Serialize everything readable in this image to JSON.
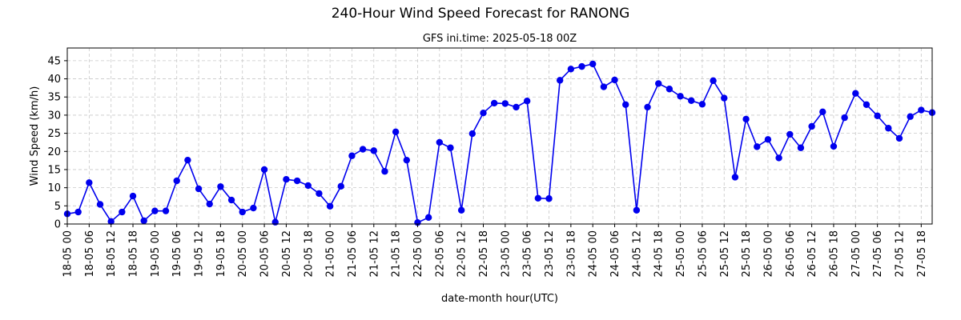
{
  "chart_data": {
    "type": "line",
    "title": "240-Hour Wind Speed Forecast for RANONG",
    "subtitle": "GFS ini.time: 2025-05-18 00Z",
    "xlabel": "date-month hour(UTC)",
    "ylabel": "Wind Speed (km/h)",
    "ylim": [
      0,
      48.5
    ],
    "yticks": [
      0,
      5,
      10,
      15,
      20,
      25,
      30,
      35,
      40,
      45
    ],
    "grid": true,
    "grid_style": "dashed",
    "line_color": "#0000ee",
    "marker": "circle",
    "x_tick_labels": [
      "18-05 00",
      "18-05 06",
      "18-05 12",
      "18-05 18",
      "19-05 00",
      "19-05 06",
      "19-05 12",
      "19-05 18",
      "20-05 00",
      "20-05 06",
      "20-05 12",
      "20-05 18",
      "21-05 00",
      "21-05 06",
      "21-05 12",
      "21-05 18",
      "22-05 00",
      "22-05 06",
      "22-05 12",
      "22-05 18",
      "23-05 00",
      "23-05 06",
      "23-05 12",
      "23-05 18",
      "24-05 00",
      "24-05 06",
      "24-05 12",
      "24-05 18",
      "25-05 00",
      "25-05 06",
      "25-05 12",
      "25-05 18",
      "26-05 00",
      "26-05 06",
      "26-05 12",
      "26-05 18",
      "27-05 00",
      "27-05 06",
      "27-05 12",
      "27-05 18"
    ],
    "x_step_hours": 3,
    "values": [
      2.8,
      3.3,
      11.4,
      5.4,
      0.7,
      3.3,
      7.7,
      0.9,
      3.6,
      3.6,
      11.9,
      17.6,
      9.7,
      5.5,
      10.3,
      6.6,
      3.3,
      4.4,
      15.0,
      0.5,
      12.3,
      11.9,
      10.6,
      8.4,
      4.9,
      10.4,
      18.8,
      20.6,
      20.2,
      14.5,
      25.4,
      17.6,
      0.4,
      1.8,
      22.5,
      21.0,
      3.8,
      24.9,
      30.6,
      33.3,
      33.2,
      32.2,
      33.9,
      7.1,
      7.0,
      39.6,
      42.7,
      43.4,
      44.1,
      37.8,
      39.7,
      32.9,
      3.8,
      32.2,
      38.7,
      37.2,
      35.2,
      34.0,
      33.0,
      39.5,
      34.7,
      12.9,
      28.9,
      21.3,
      23.3,
      18.2,
      24.7,
      21.0,
      26.9,
      30.9,
      21.4,
      29.3,
      36.0,
      32.9,
      29.8,
      26.4,
      23.6,
      29.6,
      31.4,
      30.7
    ]
  }
}
